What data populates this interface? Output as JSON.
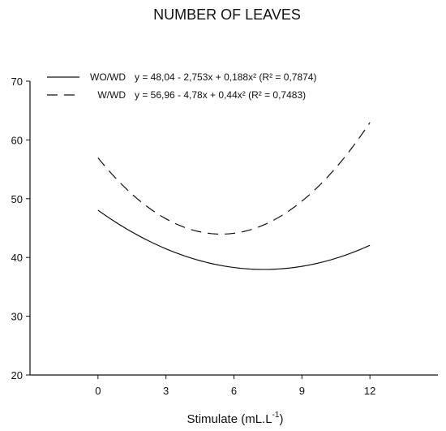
{
  "chart_data": {
    "type": "line",
    "title": "NUMBER OF LEAVES",
    "xlabel": "Stimulate (mL.L",
    "xlabel_sup": "-1",
    "xlabel_close": ")",
    "ylabel": "",
    "xlim": [
      -3,
      15
    ],
    "ylim": [
      20,
      70
    ],
    "xticks": [
      0,
      3,
      6,
      9,
      12
    ],
    "yticks": [
      20,
      30,
      40,
      50,
      60,
      70
    ],
    "grid": false,
    "legend_position": "top-left",
    "series": [
      {
        "name": "WO/WD",
        "equation": "y = 48,04 - 2,753x + 0,188x² (R² = 0,7874)",
        "line_style": "solid",
        "color": "#111111",
        "coefficients": [
          48.04,
          -2.753,
          0.188
        ],
        "x": [
          0,
          1.5,
          3,
          4.5,
          6,
          7.5,
          9,
          10.5,
          12
        ],
        "values": [
          48.04,
          44.33,
          41.47,
          39.46,
          38.29,
          37.98,
          38.51,
          39.89,
          42.13
        ]
      },
      {
        "name": "W/WD",
        "equation": "y = 56,96 - 4,78x + 0,44x² (R² = 0,7483)",
        "line_style": "dashed",
        "color": "#111111",
        "coefficients": [
          56.96,
          -4.78,
          0.44
        ],
        "x": [
          0,
          1.5,
          3,
          4.5,
          6,
          7.5,
          9,
          10.5,
          12
        ],
        "values": [
          56.96,
          50.78,
          46.58,
          44.36,
          44.12,
          45.86,
          49.58,
          55.28,
          62.96
        ]
      }
    ]
  }
}
